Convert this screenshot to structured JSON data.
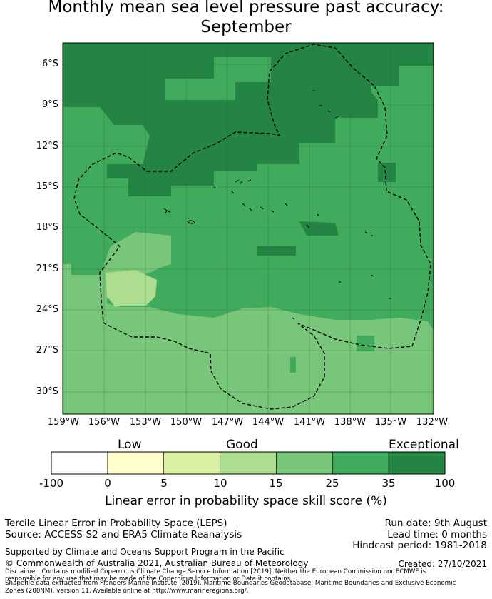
{
  "title_line1": "Monthly mean sea level pressure past accuracy:",
  "title_line2": "September",
  "map": {
    "lat_ticks": [
      "6°S",
      "9°S",
      "12°S",
      "15°S",
      "18°S",
      "21°S",
      "24°S",
      "27°S",
      "30°S"
    ],
    "lon_ticks": [
      "159°W",
      "156°W",
      "153°W",
      "150°W",
      "147°W",
      "144°W",
      "141°W",
      "138°W",
      "135°W",
      "132°W"
    ]
  },
  "colorbar": {
    "categories": {
      "low": "Low",
      "good": "Good",
      "exceptional": "Exceptional"
    },
    "ticks": [
      "-100",
      "0",
      "5",
      "10",
      "15",
      "25",
      "35",
      "100"
    ],
    "colors": [
      "#ffffff",
      "#ffffcc",
      "#d9f0a3",
      "#addd8e",
      "#78c679",
      "#41ab5d",
      "#238443"
    ],
    "label": "Linear error in probability space skill score (%)"
  },
  "footer": {
    "method": "Tercile Linear Error in Probability Space (LEPS)",
    "source": "Source: ACCESS-S2 and ERA5 Climate Reanalysis",
    "run_date": "Run date: 9th August",
    "lead_time": "Lead time: 0 months",
    "hindcast": "Hindcast period: 1981-2018",
    "supported": "Supported by Climate and Oceans Support Program in the Pacific",
    "copyright": "© Commonwealth of Australia 2021, Australian Bureau of Meteorology",
    "created": "Created: 27/10/2021",
    "disclaimer1": "Disclaimer: Contains modified Copernicus Climate Change Service Information [2019]. Neither the European Commission nor ECMWF is",
    "disclaimer2": "responsible for any use that may be made of the Copernicus Information or Data it contains.",
    "disclaimer3": "Shapefile data extracted from Flanders Marine Institute (2019). Maritime Boundaries Geodatabase: Maritime Boundaries and Exclusive Economic",
    "disclaimer4": "Zones (200NM), version 11. Available online at http://www.marineregions.org/."
  }
}
